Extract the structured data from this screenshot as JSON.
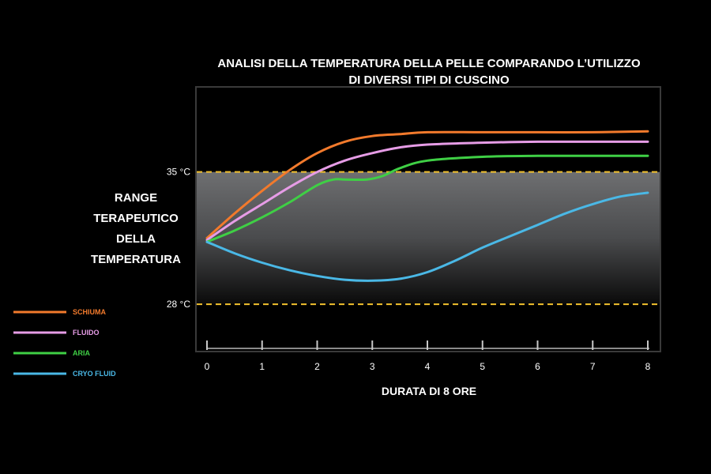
{
  "chart_data": {
    "type": "line",
    "title_lines": [
      "ANALISI DELLA TEMPERATURA DELLA PELLE COMPARANDO L’UTILIZZO",
      "DI DIVERSI TIPI DI CUSCINO"
    ],
    "xlabel": "DURATA DI 8 ORE",
    "x_ticks": [
      "0",
      "1",
      "2",
      "3",
      "4",
      "5",
      "6",
      "7",
      "8"
    ],
    "xlim": [
      0,
      8
    ],
    "ylim": [
      25.5,
      39.5
    ],
    "reference_lines": [
      {
        "label": "35 °C",
        "value": 35,
        "color": "#f2c12e"
      },
      {
        "label": "28 °C",
        "value": 28,
        "color": "#f2c12e"
      }
    ],
    "band_label_lines": [
      "RANGE",
      "TERAPEUTICO",
      "DELLA",
      "TEMPERATURA"
    ],
    "legend_position": "left",
    "grid": false,
    "series": [
      {
        "name": "SCHIUMA",
        "color": "#f27a2c",
        "x": [
          0,
          0.5,
          1,
          1.5,
          2,
          2.5,
          3,
          3.5,
          4,
          5,
          6,
          7,
          8
        ],
        "y": [
          31.5,
          32.8,
          34.0,
          35.1,
          36.0,
          36.6,
          36.9,
          37.0,
          37.1,
          37.1,
          37.1,
          37.1,
          37.15
        ]
      },
      {
        "name": "FLUIDO",
        "color": "#e69ce6",
        "x": [
          0,
          0.5,
          1,
          1.5,
          2,
          2.5,
          3,
          3.5,
          4,
          5,
          6,
          7,
          8
        ],
        "y": [
          31.4,
          32.4,
          33.3,
          34.2,
          35.0,
          35.6,
          36.0,
          36.3,
          36.45,
          36.55,
          36.6,
          36.6,
          36.6
        ]
      },
      {
        "name": "ARIA",
        "color": "#3fcf45",
        "x": [
          0,
          0.5,
          1,
          1.5,
          2,
          2.3,
          2.5,
          2.9,
          3.2,
          3.5,
          4,
          5,
          6,
          7,
          8
        ],
        "y": [
          31.3,
          31.9,
          32.6,
          33.4,
          34.3,
          34.6,
          34.6,
          34.6,
          34.8,
          35.2,
          35.6,
          35.8,
          35.85,
          35.85,
          35.85
        ]
      },
      {
        "name": "CRYO FLUID",
        "color": "#4ab8e6",
        "x": [
          0,
          0.5,
          1,
          1.5,
          2,
          2.5,
          3,
          3.5,
          4,
          4.5,
          5,
          5.5,
          6,
          6.5,
          7,
          7.5,
          8
        ],
        "y": [
          31.3,
          30.7,
          30.2,
          29.8,
          29.5,
          29.3,
          29.25,
          29.35,
          29.7,
          30.3,
          31.0,
          31.6,
          32.2,
          32.8,
          33.3,
          33.7,
          33.9
        ]
      }
    ]
  }
}
